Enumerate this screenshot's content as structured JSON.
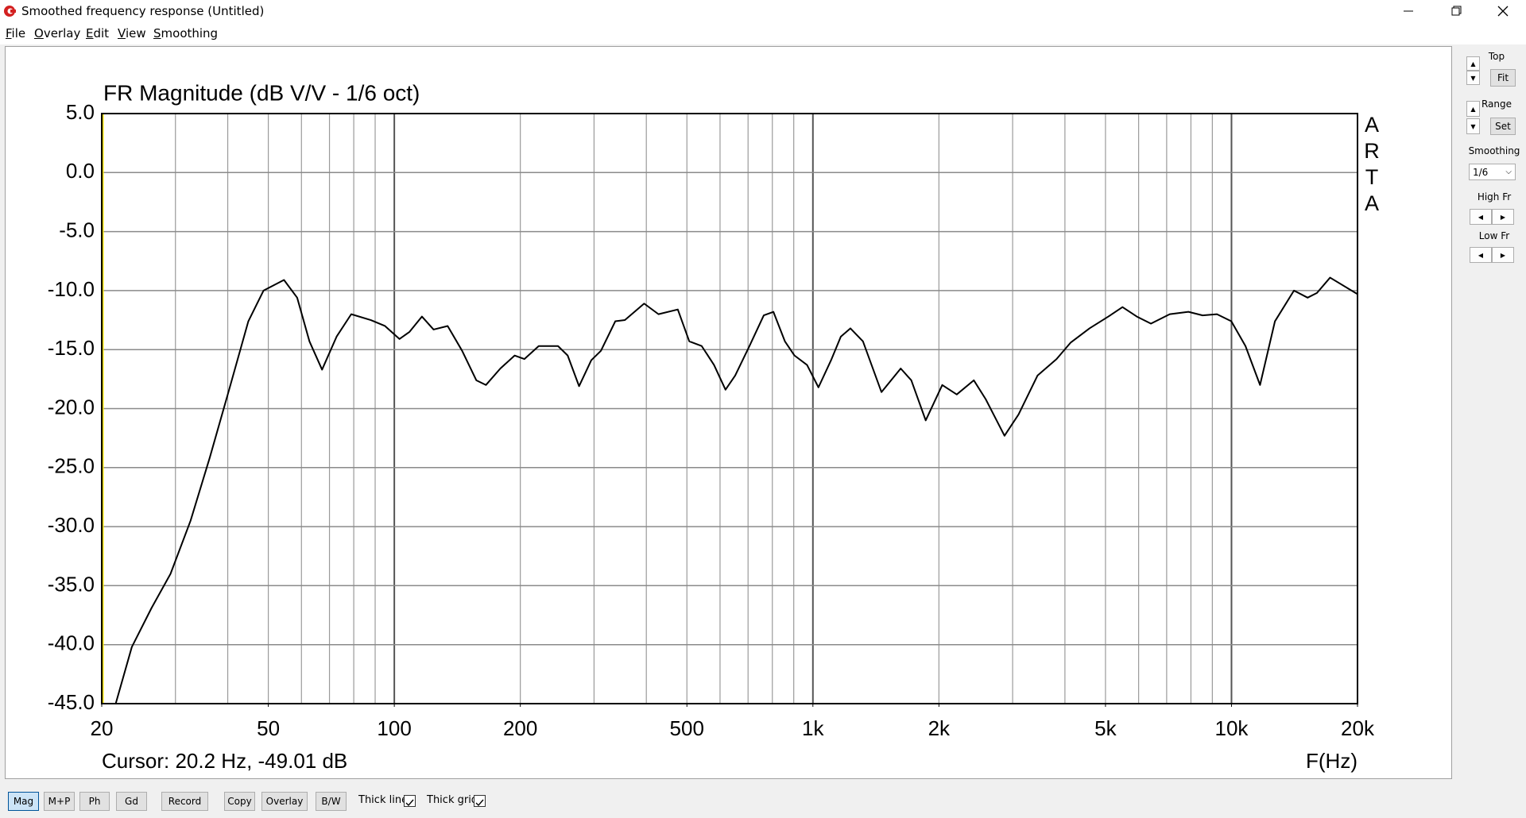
{
  "window": {
    "title": "Smoothed frequency response (Untitled)"
  },
  "menu": [
    "File",
    "Overlay",
    "Edit",
    "View",
    "Smoothing"
  ],
  "chart_data": {
    "type": "line",
    "title": "FR Magnitude (dB V/V - 1/6 oct)",
    "x_label": "F(Hz)",
    "cursor": "Cursor: 20.2 Hz, -49.01 dB",
    "brand": "ARTA",
    "xscale": "log",
    "grid": true,
    "xlim": [
      20,
      20000
    ],
    "ylim": [
      -45,
      5
    ],
    "xticks": [
      20,
      50,
      100,
      200,
      500,
      {
        "value": 1000,
        "label": "1k"
      },
      {
        "value": 2000,
        "label": "2k"
      },
      {
        "value": 5000,
        "label": "5k"
      },
      {
        "value": 10000,
        "label": "10k"
      },
      {
        "value": 20000,
        "label": "20k"
      }
    ],
    "yticks": [
      {
        "value": 5,
        "label": "5.0"
      },
      {
        "value": 0,
        "label": "0.0"
      },
      {
        "value": -5,
        "label": "-5.0"
      },
      {
        "value": -10,
        "label": "-10.0"
      },
      {
        "value": -15,
        "label": "-15.0"
      },
      {
        "value": -20,
        "label": "-20.0"
      },
      {
        "value": -25,
        "label": "-25.0"
      },
      {
        "value": -30,
        "label": "-30.0"
      },
      {
        "value": -35,
        "label": "-35.0"
      },
      {
        "value": -40,
        "label": "-40.0"
      },
      {
        "value": -45,
        "label": "-45.0"
      }
    ],
    "x": [
      21.6,
      23.6,
      26.3,
      29.2,
      32.6,
      36.2,
      40.3,
      44.8,
      48.7,
      54.5,
      58.6,
      62.7,
      67.2,
      72.8,
      78.9,
      87.9,
      95,
      102.9,
      108.7,
      116.4,
      124.1,
      134.1,
      145.2,
      157,
      165.5,
      179.2,
      193.9,
      204.5,
      221.3,
      246.1,
      259.5,
      276.3,
      295.5,
      311.6,
      337.2,
      355.5,
      395.2,
      427.7,
      475.6,
      506.6,
      542.4,
      580.5,
      618.3,
      652,
      705.4,
      763.2,
      804.7,
      857.2,
      903.6,
      968.3,
      1031,
      1105,
      1166,
      1229,
      1317,
      1458,
      1621,
      1718,
      1860,
      2037,
      2206,
      2423,
      2587,
      2869,
      3099,
      3440,
      3820,
      4130,
      4580,
      5080,
      5490,
      5940,
      6420,
      7120,
      7890,
      8530,
      9230,
      9990,
      10800,
      11700,
      12700,
      14100,
      15200,
      16000,
      17200,
      20000
    ],
    "series": [
      {
        "color": "#000000",
        "values": [
          -45,
          -40.2,
          -36.9,
          -34,
          -29.5,
          -24.2,
          -18.4,
          -12.6,
          -10,
          -9.1,
          -10.6,
          -14.3,
          -16.7,
          -13.9,
          -12,
          -12.5,
          -13,
          -14.1,
          -13.5,
          -12.2,
          -13.3,
          -13,
          -15.1,
          -17.6,
          -18,
          -16.6,
          -15.5,
          -15.8,
          -14.7,
          -14.7,
          -15.5,
          -18.1,
          -15.9,
          -15.1,
          -12.6,
          -12.5,
          -11.1,
          -12,
          -11.6,
          -14.3,
          -14.7,
          -16.3,
          -18.4,
          -17.2,
          -14.7,
          -12.1,
          -11.8,
          -14.3,
          -15.5,
          -16.3,
          -18.2,
          -15.9,
          -13.9,
          -13.2,
          -14.3,
          -18.6,
          -16.6,
          -17.6,
          -21,
          -18,
          -18.8,
          -17.6,
          -19.2,
          -22.3,
          -20.5,
          -17.2,
          -15.8,
          -14.4,
          -13.2,
          -12.2,
          -11.4,
          -12.2,
          -12.8,
          -12,
          -11.8,
          -12.1,
          -12,
          -12.6,
          -14.7,
          -18,
          -12.6,
          -10,
          -10.6,
          -10.2,
          -8.9,
          -10.3
        ]
      }
    ]
  },
  "side_panel": {
    "top": "Top",
    "fit": "Fit",
    "range": "Range",
    "set": "Set",
    "smoothing": "Smoothing",
    "smoothing_value": "1/6",
    "high_fr": "High Fr",
    "low_fr": "Low Fr"
  },
  "toolbar": {
    "active": 0,
    "buttons": [
      "Mag",
      "M+P",
      "Ph",
      "Gd",
      "Record",
      "Copy",
      "Overlay",
      "B/W"
    ],
    "checkboxes": [
      {
        "label": "Thick line",
        "checked": true
      },
      {
        "label": "Thick grid",
        "checked": true
      }
    ]
  }
}
